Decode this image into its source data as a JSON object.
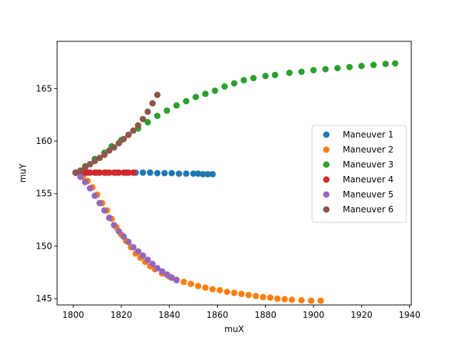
{
  "chart_data": {
    "type": "scatter",
    "xlabel": "muX",
    "ylabel": "muY",
    "xlim": [
      1793.3,
      1940.7
    ],
    "ylim": [
      144.4,
      169.5
    ],
    "xticks": [
      1800,
      1820,
      1840,
      1860,
      1880,
      1900,
      1920,
      1940
    ],
    "yticks": [
      145,
      150,
      155,
      160,
      165
    ],
    "grid": false,
    "legend_position": "center-right",
    "series": [
      {
        "name": "Maneuver 1",
        "color": "#1f77b4",
        "points": [
          [
            1801,
            157.0
          ],
          [
            1803,
            157.0
          ],
          [
            1806,
            157.0
          ],
          [
            1810,
            157.0
          ],
          [
            1814,
            157.0
          ],
          [
            1818,
            157.0
          ],
          [
            1822,
            157.0
          ],
          [
            1826,
            157.0
          ],
          [
            1829,
            157.0
          ],
          [
            1832,
            157.0
          ],
          [
            1835,
            156.95
          ],
          [
            1838,
            156.95
          ],
          [
            1841,
            156.95
          ],
          [
            1844,
            156.9
          ],
          [
            1847,
            156.9
          ],
          [
            1850,
            156.9
          ],
          [
            1852,
            156.9
          ],
          [
            1854,
            156.85
          ],
          [
            1856,
            156.85
          ],
          [
            1858,
            156.85
          ]
        ]
      },
      {
        "name": "Maneuver 2",
        "color": "#ff7f0e",
        "points": [
          [
            1801,
            157.0
          ],
          [
            1804,
            156.6
          ],
          [
            1806,
            156.2
          ],
          [
            1808,
            155.6
          ],
          [
            1810,
            154.9
          ],
          [
            1812,
            154.1
          ],
          [
            1814,
            153.4
          ],
          [
            1816,
            152.6
          ],
          [
            1818,
            151.8
          ],
          [
            1820,
            151.1
          ],
          [
            1822,
            150.5
          ],
          [
            1824,
            149.9
          ],
          [
            1826,
            149.3
          ],
          [
            1828,
            148.9
          ],
          [
            1830,
            148.5
          ],
          [
            1832,
            148.1
          ],
          [
            1834,
            147.8
          ],
          [
            1837,
            147.4
          ],
          [
            1840,
            147.1
          ],
          [
            1843,
            146.8
          ],
          [
            1846,
            146.6
          ],
          [
            1849,
            146.4
          ],
          [
            1852,
            146.2
          ],
          [
            1855,
            146.05
          ],
          [
            1858,
            145.9
          ],
          [
            1861,
            145.8
          ],
          [
            1864,
            145.65
          ],
          [
            1867,
            145.55
          ],
          [
            1870,
            145.45
          ],
          [
            1873,
            145.35
          ],
          [
            1876,
            145.25
          ],
          [
            1879,
            145.15
          ],
          [
            1882,
            145.1
          ],
          [
            1885,
            145.0
          ],
          [
            1888,
            144.95
          ],
          [
            1891,
            144.9
          ],
          [
            1895,
            144.85
          ],
          [
            1899,
            144.8
          ],
          [
            1903,
            144.8
          ]
        ]
      },
      {
        "name": "Maneuver 3",
        "color": "#2ca02c",
        "points": [
          [
            1801,
            157.0
          ],
          [
            1805,
            157.6
          ],
          [
            1809,
            158.3
          ],
          [
            1813,
            158.9
          ],
          [
            1816,
            159.5
          ],
          [
            1820,
            160.1
          ],
          [
            1823,
            160.6
          ],
          [
            1827,
            161.2
          ],
          [
            1831,
            161.8
          ],
          [
            1835,
            162.4
          ],
          [
            1839,
            162.9
          ],
          [
            1843,
            163.4
          ],
          [
            1847,
            163.8
          ],
          [
            1851,
            164.2
          ],
          [
            1855,
            164.5
          ],
          [
            1859,
            164.8
          ],
          [
            1863,
            165.2
          ],
          [
            1867,
            165.5
          ],
          [
            1871,
            165.8
          ],
          [
            1875,
            166.0
          ],
          [
            1880,
            166.2
          ],
          [
            1884,
            166.3
          ],
          [
            1890,
            166.5
          ],
          [
            1895,
            166.6
          ],
          [
            1900,
            166.75
          ],
          [
            1905,
            166.85
          ],
          [
            1910,
            166.95
          ],
          [
            1915,
            167.05
          ],
          [
            1920,
            167.15
          ],
          [
            1925,
            167.25
          ],
          [
            1930,
            167.35
          ],
          [
            1934,
            167.4
          ]
        ]
      },
      {
        "name": "Maneuver 4",
        "color": "#d62728",
        "points": [
          [
            1801,
            157.0
          ],
          [
            1803,
            157.0
          ],
          [
            1805,
            157.0
          ],
          [
            1807,
            157.0
          ],
          [
            1809,
            157.0
          ],
          [
            1811,
            157.0
          ],
          [
            1813,
            157.0
          ],
          [
            1815,
            157.0
          ],
          [
            1817,
            157.0
          ],
          [
            1819,
            157.0
          ],
          [
            1821,
            157.0
          ],
          [
            1823,
            157.0
          ],
          [
            1825,
            157.0
          ]
        ]
      },
      {
        "name": "Maneuver 5",
        "color": "#9467bd",
        "points": [
          [
            1801,
            157.0
          ],
          [
            1803,
            156.6
          ],
          [
            1805,
            156.1
          ],
          [
            1807,
            155.5
          ],
          [
            1809,
            154.8
          ],
          [
            1811,
            154.1
          ],
          [
            1813,
            153.4
          ],
          [
            1815,
            152.7
          ],
          [
            1817,
            152.0
          ],
          [
            1819,
            151.4
          ],
          [
            1821,
            150.9
          ],
          [
            1823,
            150.4
          ],
          [
            1825,
            149.9
          ],
          [
            1827,
            149.5
          ],
          [
            1829,
            149.1
          ],
          [
            1831,
            148.7
          ],
          [
            1833,
            148.3
          ],
          [
            1835,
            147.9
          ],
          [
            1837,
            147.6
          ],
          [
            1839,
            147.3
          ],
          [
            1841,
            147.0
          ],
          [
            1843,
            146.75
          ]
        ]
      },
      {
        "name": "Maneuver 6",
        "color": "#8c564b",
        "points": [
          [
            1801,
            157.0
          ],
          [
            1803,
            157.2
          ],
          [
            1805,
            157.5
          ],
          [
            1807,
            157.8
          ],
          [
            1809,
            158.1
          ],
          [
            1811,
            158.4
          ],
          [
            1813,
            158.7
          ],
          [
            1815,
            159.1
          ],
          [
            1817,
            159.4
          ],
          [
            1819,
            159.8
          ],
          [
            1821,
            160.2
          ],
          [
            1823,
            160.6
          ],
          [
            1825,
            161.0
          ],
          [
            1827,
            161.5
          ],
          [
            1829,
            162.1
          ],
          [
            1831,
            162.8
          ],
          [
            1833,
            163.6
          ],
          [
            1835,
            164.4
          ]
        ]
      }
    ]
  }
}
